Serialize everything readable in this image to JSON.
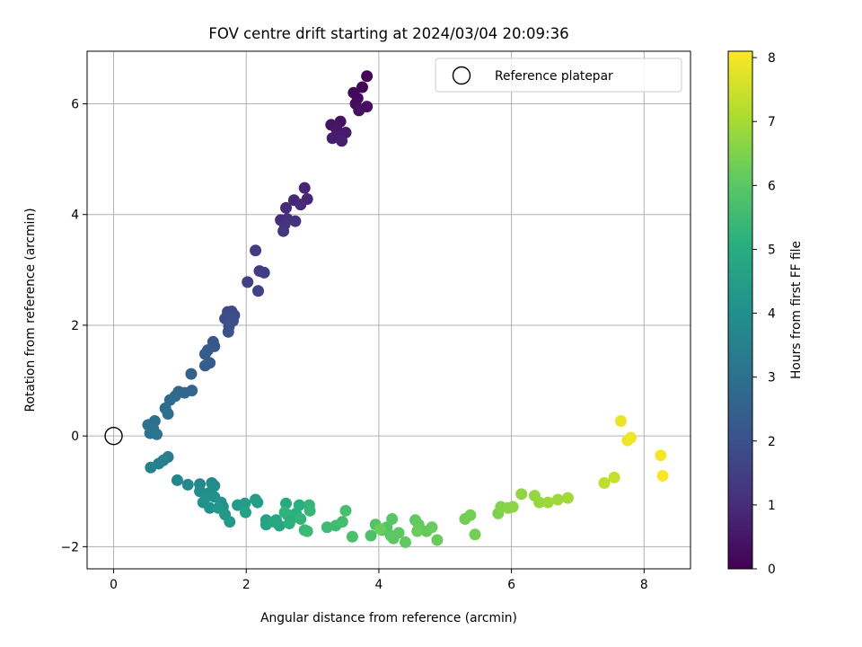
{
  "chart_data": {
    "type": "scatter",
    "title": "FOV centre drift starting at 2024/03/04 20:09:36",
    "xlabel": "Angular distance from reference (arcmin)",
    "ylabel": "Rotation from reference (arcmin)",
    "xlim": [
      -0.4,
      8.7
    ],
    "ylim": [
      -2.4,
      6.95
    ],
    "xticks": [
      0,
      2,
      4,
      6,
      8
    ],
    "yticks": [
      -2,
      0,
      2,
      4,
      6
    ],
    "xtick_labels": [
      "0",
      "2",
      "4",
      "6",
      "8"
    ],
    "ytick_labels": [
      "−2",
      "0",
      "2",
      "4",
      "6"
    ],
    "grid": true,
    "colorbar": {
      "label": "Hours from first FF file",
      "range": [
        0,
        8.1
      ],
      "ticks": [
        0,
        1,
        2,
        3,
        4,
        5,
        6,
        7,
        8
      ],
      "tick_labels": [
        "0",
        "1",
        "2",
        "3",
        "4",
        "5",
        "6",
        "7",
        "8"
      ],
      "colormap": "viridis"
    },
    "reference": {
      "name": "Reference platepar",
      "x": 0,
      "y": 0
    },
    "legend": {
      "location": "upper right",
      "entries": [
        "Reference platepar"
      ]
    },
    "points": [
      [
        3.82,
        6.5,
        0.05
      ],
      [
        3.75,
        6.3,
        0.1
      ],
      [
        3.62,
        6.2,
        0.15
      ],
      [
        3.68,
        6.1,
        0.2
      ],
      [
        3.65,
        6.0,
        0.25
      ],
      [
        3.82,
        5.95,
        0.3
      ],
      [
        3.7,
        5.88,
        0.35
      ],
      [
        3.42,
        5.68,
        0.4
      ],
      [
        3.28,
        5.62,
        0.45
      ],
      [
        3.36,
        5.55,
        0.5
      ],
      [
        3.5,
        5.48,
        0.55
      ],
      [
        3.4,
        5.42,
        0.6
      ],
      [
        3.3,
        5.38,
        0.65
      ],
      [
        3.44,
        5.33,
        0.7
      ],
      [
        2.88,
        4.48,
        0.8
      ],
      [
        2.92,
        4.28,
        0.85
      ],
      [
        2.72,
        4.26,
        0.9
      ],
      [
        2.82,
        4.18,
        0.95
      ],
      [
        2.6,
        4.12,
        1.0
      ],
      [
        2.52,
        3.9,
        1.05
      ],
      [
        2.62,
        3.92,
        1.1
      ],
      [
        2.74,
        3.88,
        1.15
      ],
      [
        2.58,
        3.82,
        1.2
      ],
      [
        2.56,
        3.7,
        1.25
      ],
      [
        2.14,
        3.35,
        1.4
      ],
      [
        2.2,
        2.98,
        1.45
      ],
      [
        2.27,
        2.95,
        1.5
      ],
      [
        2.02,
        2.78,
        1.55
      ],
      [
        2.18,
        2.62,
        1.6
      ],
      [
        1.78,
        2.25,
        1.75
      ],
      [
        1.72,
        2.24,
        1.8
      ],
      [
        1.82,
        2.18,
        1.85
      ],
      [
        1.68,
        2.12,
        1.9
      ],
      [
        1.8,
        2.08,
        1.95
      ],
      [
        1.74,
        1.98,
        2.0
      ],
      [
        1.73,
        1.88,
        2.05
      ],
      [
        1.5,
        1.7,
        2.15
      ],
      [
        1.52,
        1.62,
        2.2
      ],
      [
        1.42,
        1.55,
        2.25
      ],
      [
        1.38,
        1.48,
        2.3
      ],
      [
        1.45,
        1.32,
        2.35
      ],
      [
        1.38,
        1.27,
        2.4
      ],
      [
        1.17,
        1.12,
        2.5
      ],
      [
        1.18,
        0.82,
        2.6
      ],
      [
        1.07,
        0.78,
        2.65
      ],
      [
        0.98,
        0.8,
        2.7
      ],
      [
        0.93,
        0.72,
        2.75
      ],
      [
        0.85,
        0.65,
        2.8
      ],
      [
        0.78,
        0.5,
        2.85
      ],
      [
        0.82,
        0.4,
        2.9
      ],
      [
        0.62,
        0.27,
        2.95
      ],
      [
        0.52,
        0.2,
        3.0
      ],
      [
        0.6,
        0.12,
        3.05
      ],
      [
        0.55,
        0.05,
        3.1
      ],
      [
        0.65,
        0.03,
        3.15
      ],
      [
        0.82,
        -0.38,
        3.4
      ],
      [
        0.75,
        -0.44,
        3.45
      ],
      [
        0.68,
        -0.5,
        3.5
      ],
      [
        0.56,
        -0.57,
        3.55
      ],
      [
        0.96,
        -0.8,
        3.7
      ],
      [
        1.12,
        -0.88,
        3.75
      ],
      [
        1.3,
        -0.87,
        3.8
      ],
      [
        1.48,
        -0.85,
        3.85
      ],
      [
        1.52,
        -0.9,
        3.85
      ],
      [
        1.3,
        -1.0,
        3.9
      ],
      [
        1.38,
        -1.05,
        3.95
      ],
      [
        1.44,
        -1.03,
        3.95
      ],
      [
        1.4,
        -1.1,
        4.0
      ],
      [
        1.52,
        -1.1,
        4.05
      ],
      [
        1.35,
        -1.2,
        4.05
      ],
      [
        1.45,
        -1.3,
        4.1
      ],
      [
        1.62,
        -1.2,
        4.15
      ],
      [
        1.65,
        -1.28,
        4.2
      ],
      [
        1.58,
        -1.3,
        4.25
      ],
      [
        1.68,
        -1.42,
        4.3
      ],
      [
        1.75,
        -1.55,
        4.35
      ],
      [
        1.87,
        -1.25,
        4.4
      ],
      [
        1.98,
        -1.22,
        4.45
      ],
      [
        2.14,
        -1.15,
        4.5
      ],
      [
        2.17,
        -1.2,
        4.55
      ],
      [
        1.99,
        -1.38,
        4.6
      ],
      [
        2.3,
        -1.52,
        4.65
      ],
      [
        2.3,
        -1.6,
        4.7
      ],
      [
        2.45,
        -1.52,
        4.75
      ],
      [
        2.5,
        -1.62,
        4.8
      ],
      [
        2.42,
        -1.55,
        4.85
      ],
      [
        2.6,
        -1.22,
        4.9
      ],
      [
        2.62,
        -1.42,
        4.95
      ],
      [
        2.68,
        -1.5,
        5.0
      ],
      [
        2.8,
        -1.25,
        5.05
      ],
      [
        2.75,
        -1.4,
        5.1
      ],
      [
        2.65,
        -1.58,
        5.15
      ],
      [
        2.58,
        -1.38,
        5.2
      ],
      [
        2.82,
        -1.5,
        5.25
      ],
      [
        2.95,
        -1.25,
        5.3
      ],
      [
        2.96,
        -1.35,
        5.35
      ],
      [
        2.88,
        -1.7,
        5.4
      ],
      [
        2.92,
        -1.72,
        5.45
      ],
      [
        3.22,
        -1.65,
        5.5
      ],
      [
        3.35,
        -1.62,
        5.55
      ],
      [
        3.45,
        -1.55,
        5.6
      ],
      [
        3.5,
        -1.35,
        5.65
      ],
      [
        3.6,
        -1.82,
        5.7
      ],
      [
        3.88,
        -1.8,
        5.75
      ],
      [
        3.95,
        -1.6,
        5.8
      ],
      [
        4.05,
        -1.7,
        5.85
      ],
      [
        4.12,
        -1.65,
        5.9
      ],
      [
        4.2,
        -1.5,
        5.95
      ],
      [
        4.18,
        -1.8,
        6.0
      ],
      [
        4.3,
        -1.75,
        6.05
      ],
      [
        4.22,
        -1.85,
        6.05
      ],
      [
        4.4,
        -1.92,
        6.1
      ],
      [
        4.55,
        -1.52,
        6.1
      ],
      [
        4.6,
        -1.6,
        6.15
      ],
      [
        4.72,
        -1.72,
        6.15
      ],
      [
        4.8,
        -1.65,
        6.2
      ],
      [
        4.88,
        -1.88,
        6.2
      ],
      [
        4.58,
        -1.72,
        6.25
      ],
      [
        4.02,
        -1.68,
        6.25
      ],
      [
        5.3,
        -1.5,
        6.3
      ],
      [
        5.38,
        -1.43,
        6.35
      ],
      [
        5.45,
        -1.78,
        6.35
      ],
      [
        5.8,
        -1.4,
        6.5
      ],
      [
        5.84,
        -1.28,
        6.55
      ],
      [
        5.95,
        -1.3,
        6.6
      ],
      [
        6.02,
        -1.28,
        6.65
      ],
      [
        6.15,
        -1.05,
        6.7
      ],
      [
        6.35,
        -1.08,
        6.75
      ],
      [
        6.42,
        -1.2,
        6.8
      ],
      [
        6.55,
        -1.2,
        6.85
      ],
      [
        6.7,
        -1.15,
        6.9
      ],
      [
        6.85,
        -1.12,
        6.95
      ],
      [
        7.4,
        -0.85,
        7.3
      ],
      [
        7.55,
        -0.75,
        7.4
      ],
      [
        7.65,
        0.27,
        7.85
      ],
      [
        7.75,
        -0.08,
        7.9
      ],
      [
        7.8,
        -0.03,
        7.95
      ],
      [
        8.25,
        -0.35,
        8.0
      ],
      [
        8.28,
        -0.72,
        8.05
      ]
    ]
  }
}
